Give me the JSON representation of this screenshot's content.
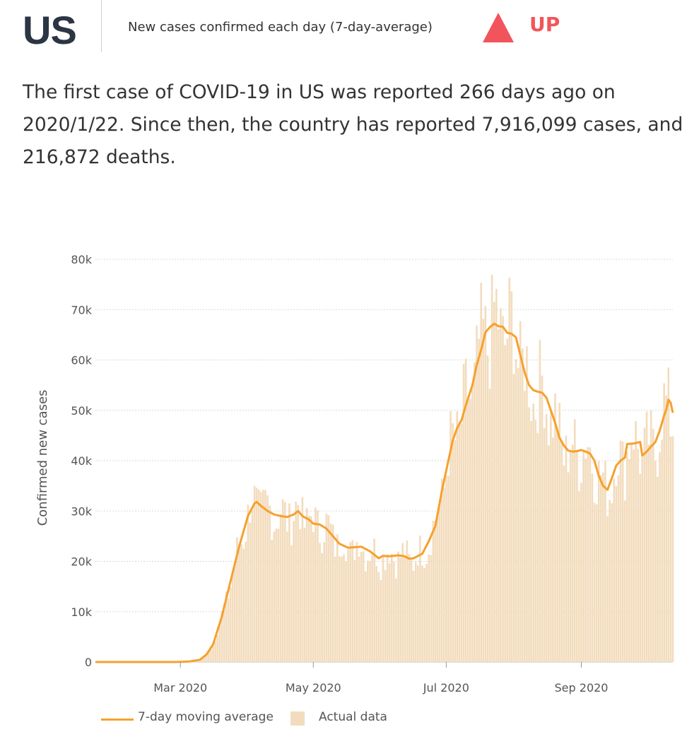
{
  "header": {
    "country": "US",
    "metric": "New cases confirmed each day (7-day-average)",
    "trend": "UP",
    "trend_icon": "triangle-up-icon",
    "trend_color": "#f2545b"
  },
  "summary": "The first case of COVID-19 in US was reported 266 days ago on 2020/1/22. Since then, the country has reported 7,916,099 cases, and 216,872 deaths.",
  "legend": {
    "line_label": "7-day moving average",
    "bar_label": "Actual data"
  },
  "colors": {
    "line": "#f6a02d",
    "bars": "#f3dcbd",
    "grid": "#d9d9d9"
  },
  "chart_data": {
    "type": "bar",
    "x_axis": {
      "start": "2020-01-22",
      "end": "2020-10-13",
      "ticks": [
        "Mar 2020",
        "May 2020",
        "Jul 2020",
        "Sep 2020"
      ],
      "tick_dates": [
        "2020-03-01",
        "2020-05-01",
        "2020-07-01",
        "2020-09-01"
      ]
    },
    "ylabel": "Confirmed new cases",
    "ylim": [
      0,
      80000
    ],
    "yticks": [
      0,
      10000,
      20000,
      30000,
      40000,
      50000,
      60000,
      70000,
      80000
    ],
    "ytick_labels": [
      "0",
      "10k",
      "20k",
      "30k",
      "40k",
      "50k",
      "60k",
      "70k",
      "80k"
    ],
    "grid": true,
    "legend_position": "bottom-left",
    "series": [
      {
        "name": "7-day moving average",
        "type": "line",
        "points": [
          [
            "2020-01-22",
            0
          ],
          [
            "2020-02-28",
            0
          ],
          [
            "2020-03-05",
            100
          ],
          [
            "2020-03-10",
            450
          ],
          [
            "2020-03-13",
            1500
          ],
          [
            "2020-03-16",
            3500
          ],
          [
            "2020-03-20",
            9000
          ],
          [
            "2020-03-24",
            16000
          ],
          [
            "2020-03-28",
            23000
          ],
          [
            "2020-04-01",
            29000
          ],
          [
            "2020-04-04",
            31500
          ],
          [
            "2020-04-05",
            31800
          ],
          [
            "2020-04-07",
            31000
          ],
          [
            "2020-04-10",
            30000
          ],
          [
            "2020-04-13",
            29300
          ],
          [
            "2020-04-16",
            29000
          ],
          [
            "2020-04-19",
            28800
          ],
          [
            "2020-04-22",
            29300
          ],
          [
            "2020-04-24",
            30000
          ],
          [
            "2020-04-26",
            29000
          ],
          [
            "2020-04-29",
            28300
          ],
          [
            "2020-05-01",
            27500
          ],
          [
            "2020-05-04",
            27300
          ],
          [
            "2020-05-07",
            26500
          ],
          [
            "2020-05-10",
            25000
          ],
          [
            "2020-05-13",
            23500
          ],
          [
            "2020-05-17",
            22700
          ],
          [
            "2020-05-20",
            22800
          ],
          [
            "2020-05-23",
            22900
          ],
          [
            "2020-05-27",
            22000
          ],
          [
            "2020-05-31",
            20600
          ],
          [
            "2020-06-02",
            21100
          ],
          [
            "2020-06-05",
            21000
          ],
          [
            "2020-06-09",
            21200
          ],
          [
            "2020-06-12",
            21000
          ],
          [
            "2020-06-14",
            20500
          ],
          [
            "2020-06-16",
            20600
          ],
          [
            "2020-06-20",
            21500
          ],
          [
            "2020-06-23",
            24000
          ],
          [
            "2020-06-26",
            27000
          ],
          [
            "2020-06-29",
            34000
          ],
          [
            "2020-07-02",
            40000
          ],
          [
            "2020-07-04",
            44000
          ],
          [
            "2020-07-06",
            46500
          ],
          [
            "2020-07-08",
            48000
          ],
          [
            "2020-07-10",
            51000
          ],
          [
            "2020-07-13",
            55000
          ],
          [
            "2020-07-15",
            59000
          ],
          [
            "2020-07-17",
            62000
          ],
          [
            "2020-07-19",
            65500
          ],
          [
            "2020-07-21",
            66500
          ],
          [
            "2020-07-23",
            67200
          ],
          [
            "2020-07-25",
            66700
          ],
          [
            "2020-07-27",
            66600
          ],
          [
            "2020-07-29",
            65400
          ],
          [
            "2020-07-31",
            65200
          ],
          [
            "2020-08-02",
            64500
          ],
          [
            "2020-08-04",
            61000
          ],
          [
            "2020-08-06",
            57500
          ],
          [
            "2020-08-08",
            55000
          ],
          [
            "2020-08-10",
            54000
          ],
          [
            "2020-08-12",
            53700
          ],
          [
            "2020-08-14",
            53500
          ],
          [
            "2020-08-16",
            52500
          ],
          [
            "2020-08-18",
            50000
          ],
          [
            "2020-08-20",
            47500
          ],
          [
            "2020-08-22",
            44500
          ],
          [
            "2020-08-24",
            43000
          ],
          [
            "2020-08-26",
            42000
          ],
          [
            "2020-08-28",
            41800
          ],
          [
            "2020-08-30",
            41900
          ],
          [
            "2020-09-01",
            42100
          ],
          [
            "2020-09-03",
            41800
          ],
          [
            "2020-09-05",
            41400
          ],
          [
            "2020-09-07",
            40000
          ],
          [
            "2020-09-09",
            37000
          ],
          [
            "2020-09-11",
            35000
          ],
          [
            "2020-09-13",
            34200
          ],
          [
            "2020-09-15",
            36500
          ],
          [
            "2020-09-17",
            39000
          ],
          [
            "2020-09-19",
            40000
          ],
          [
            "2020-09-21",
            40600
          ],
          [
            "2020-09-22",
            43300
          ],
          [
            "2020-09-25",
            43400
          ],
          [
            "2020-09-28",
            43700
          ],
          [
            "2020-09-29",
            41000
          ],
          [
            "2020-10-01",
            41800
          ],
          [
            "2020-10-03",
            42800
          ],
          [
            "2020-10-05",
            43700
          ],
          [
            "2020-10-07",
            46000
          ],
          [
            "2020-10-09",
            49000
          ],
          [
            "2020-10-10",
            50200
          ],
          [
            "2020-10-11",
            52100
          ],
          [
            "2020-10-12",
            51500
          ],
          [
            "2020-10-13",
            49500
          ]
        ]
      },
      {
        "name": "Actual data",
        "type": "bar",
        "noise_fraction": 0.16
      }
    ]
  }
}
